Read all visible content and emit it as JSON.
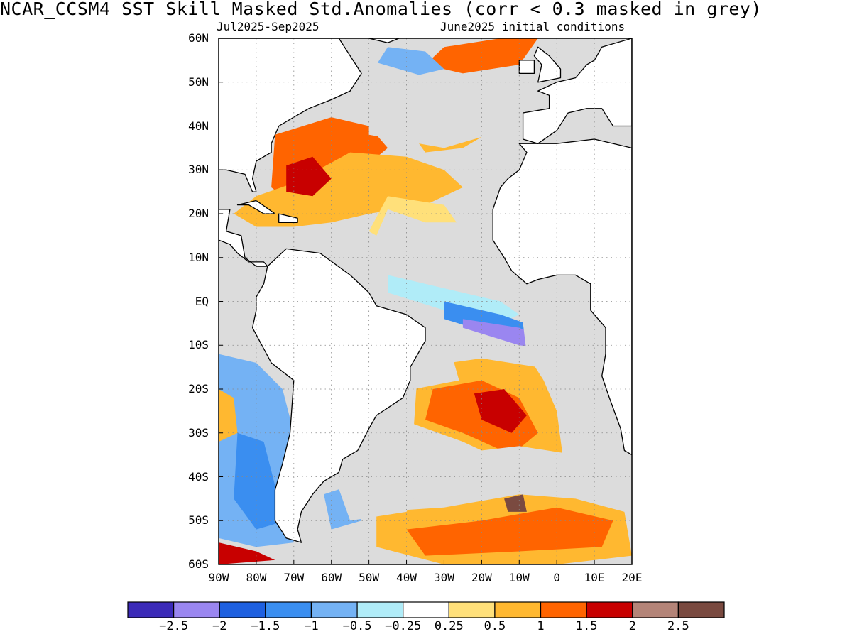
{
  "title": "NCAR_CCSM4   SST Skill Masked Std.Anomalies (corr < 0.3 masked in grey)",
  "subtitle_left": "Jul2025-Sep2025",
  "subtitle_right": "June2025 initial conditions",
  "map": {
    "projection": "equirectangular",
    "lon_range": [
      -90,
      20
    ],
    "lat_range": [
      -60,
      60
    ],
    "grid": "dotted",
    "mask_color": "#dcdcdc",
    "land_color": "#ffffff",
    "lat_ticks": [
      "60N",
      "50N",
      "40N",
      "30N",
      "20N",
      "10N",
      "EQ",
      "10S",
      "20S",
      "30S",
      "40S",
      "50S",
      "60S"
    ],
    "lat_values": [
      60,
      50,
      40,
      30,
      20,
      10,
      0,
      -10,
      -20,
      -30,
      -40,
      -50,
      -60
    ],
    "lon_ticks": [
      "90W",
      "80W",
      "70W",
      "60W",
      "50W",
      "40W",
      "30W",
      "20W",
      "10W",
      "0",
      "10E",
      "20E"
    ],
    "lon_values": [
      -90,
      -80,
      -70,
      -60,
      -50,
      -40,
      -30,
      -20,
      -10,
      0,
      10,
      20
    ]
  },
  "colorbar": {
    "colors": [
      "#3b2ab8",
      "#9a86f0",
      "#1e60e0",
      "#3a8ef0",
      "#74b2f4",
      "#b0ecf8",
      "#ffffff",
      "#ffe07a",
      "#ffb830",
      "#ff6400",
      "#c80000",
      "#b48478",
      "#7a4a40"
    ],
    "labels": [
      "-2.5",
      "-2",
      "-1.5",
      "-1",
      "-0.5",
      "-0.25",
      "0.25",
      "0.5",
      "1",
      "1.5",
      "2",
      "2.5"
    ]
  },
  "regions": [
    {
      "c": "#ff6400",
      "pts": [
        [
          -75,
          38
        ],
        [
          -60,
          42
        ],
        [
          -50,
          40
        ],
        [
          -45,
          35
        ],
        [
          -52,
          30
        ],
        [
          -60,
          24
        ],
        [
          -70,
          22
        ],
        [
          -76,
          26
        ]
      ]
    },
    {
      "c": "#ffb830",
      "pts": [
        [
          -55,
          34
        ],
        [
          -40,
          33
        ],
        [
          -30,
          30
        ],
        [
          -25,
          26
        ],
        [
          -35,
          22
        ],
        [
          -50,
          20
        ],
        [
          -60,
          18
        ],
        [
          -70,
          17
        ],
        [
          -80,
          17
        ],
        [
          -86,
          20
        ],
        [
          -80,
          24
        ],
        [
          -70,
          27
        ]
      ]
    },
    {
      "c": "#ffe07a",
      "pts": [
        [
          -45,
          24
        ],
        [
          -30,
          22
        ],
        [
          -25,
          16
        ],
        [
          -30,
          12
        ],
        [
          -42,
          12
        ],
        [
          -50,
          16
        ]
      ]
    },
    {
      "c": "#c80000",
      "pts": [
        [
          -72,
          31
        ],
        [
          -65,
          33
        ],
        [
          -60,
          28
        ],
        [
          -65,
          24
        ],
        [
          -72,
          25
        ]
      ]
    },
    {
      "c": "#ffb830",
      "pts": [
        [
          -40,
          40
        ],
        [
          -20,
          46
        ],
        [
          -10,
          47
        ],
        [
          -15,
          40
        ],
        [
          -25,
          35
        ],
        [
          -35,
          34
        ]
      ]
    },
    {
      "c": "#ff6400",
      "pts": [
        [
          -30,
          58
        ],
        [
          -15,
          60
        ],
        [
          -5,
          60
        ],
        [
          -10,
          54
        ],
        [
          -25,
          52
        ],
        [
          -35,
          54
        ]
      ]
    },
    {
      "c": "#74b2f4",
      "pts": [
        [
          -45,
          58
        ],
        [
          -35,
          57
        ],
        [
          -30,
          53
        ],
        [
          -40,
          51
        ],
        [
          -48,
          54
        ]
      ]
    },
    {
      "c": "#b0ecf8",
      "pts": [
        [
          -45,
          6
        ],
        [
          -30,
          3
        ],
        [
          -15,
          0
        ],
        [
          -10,
          -3
        ],
        [
          -15,
          -5
        ],
        [
          -30,
          -2
        ],
        [
          -45,
          2
        ]
      ]
    },
    {
      "c": "#3a8ef0",
      "pts": [
        [
          -30,
          0
        ],
        [
          -15,
          -3
        ],
        [
          -5,
          -6
        ],
        [
          -3,
          -9
        ],
        [
          -15,
          -8
        ],
        [
          -30,
          -4
        ]
      ]
    },
    {
      "c": "#9a86f0",
      "pts": [
        [
          -25,
          -4
        ],
        [
          -10,
          -6
        ],
        [
          -2,
          -9
        ],
        [
          -1,
          -11
        ],
        [
          -10,
          -10
        ],
        [
          -25,
          -6
        ]
      ]
    },
    {
      "c": "#ffb830",
      "pts": [
        [
          -37,
          -15
        ],
        [
          -20,
          -13
        ],
        [
          -5,
          -15
        ],
        [
          0,
          -25
        ],
        [
          2,
          -38
        ],
        [
          -10,
          -38
        ],
        [
          -25,
          -32
        ],
        [
          -38,
          -28
        ]
      ]
    },
    {
      "c": "#ff6400",
      "pts": [
        [
          -33,
          -20
        ],
        [
          -20,
          -18
        ],
        [
          -10,
          -22
        ],
        [
          -5,
          -30
        ],
        [
          -12,
          -35
        ],
        [
          -25,
          -30
        ],
        [
          -35,
          -27
        ]
      ]
    },
    {
      "c": "#c80000",
      "pts": [
        [
          -22,
          -21
        ],
        [
          -14,
          -20
        ],
        [
          -8,
          -26
        ],
        [
          -12,
          -30
        ],
        [
          -20,
          -27
        ]
      ]
    },
    {
      "c": "#dcdcdc",
      "pts": [
        [
          -30,
          -35
        ],
        [
          -10,
          -33
        ],
        [
          5,
          -35
        ],
        [
          10,
          -45
        ],
        [
          0,
          -50
        ],
        [
          -20,
          -48
        ],
        [
          -30,
          -42
        ]
      ]
    },
    {
      "c": "#ffb830",
      "pts": [
        [
          -48,
          -48
        ],
        [
          -30,
          -47
        ],
        [
          -10,
          -44
        ],
        [
          5,
          -45
        ],
        [
          18,
          -48
        ],
        [
          20,
          -58
        ],
        [
          0,
          -60
        ],
        [
          -30,
          -60
        ],
        [
          -48,
          -56
        ]
      ]
    },
    {
      "c": "#ff6400",
      "pts": [
        [
          -40,
          -52
        ],
        [
          -20,
          -50
        ],
        [
          0,
          -47
        ],
        [
          15,
          -50
        ],
        [
          12,
          -56
        ],
        [
          -10,
          -57
        ],
        [
          -35,
          -58
        ]
      ]
    },
    {
      "c": "#7a4a40",
      "pts": [
        [
          -14,
          -45
        ],
        [
          -9,
          -44
        ],
        [
          -8,
          -48
        ],
        [
          -13,
          -48
        ]
      ]
    },
    {
      "c": "#74b2f4",
      "pts": [
        [
          -90,
          -12
        ],
        [
          -80,
          -14
        ],
        [
          -73,
          -20
        ],
        [
          -70,
          -30
        ],
        [
          -72,
          -45
        ],
        [
          -70,
          -55
        ],
        [
          -80,
          -56
        ],
        [
          -90,
          -54
        ]
      ]
    },
    {
      "c": "#3a8ef0",
      "pts": [
        [
          -85,
          -30
        ],
        [
          -78,
          -32
        ],
        [
          -75,
          -42
        ],
        [
          -72,
          -50
        ],
        [
          -80,
          -52
        ],
        [
          -86,
          -45
        ]
      ]
    },
    {
      "c": "#ffb830",
      "pts": [
        [
          -90,
          -20
        ],
        [
          -86,
          -22
        ],
        [
          -85,
          -30
        ],
        [
          -90,
          -32
        ]
      ]
    },
    {
      "c": "#c80000",
      "pts": [
        [
          -90,
          -55
        ],
        [
          -80,
          -57
        ],
        [
          -75,
          -59
        ],
        [
          -90,
          -60
        ]
      ]
    },
    {
      "c": "#74b2f4",
      "pts": [
        [
          -62,
          -44
        ],
        [
          -55,
          -42
        ],
        [
          -52,
          -50
        ],
        [
          -60,
          -52
        ]
      ]
    },
    {
      "c": "#dcdcdc",
      "pts": [
        [
          -50,
          55
        ],
        [
          -30,
          50
        ],
        [
          -20,
          48
        ],
        [
          -5,
          52
        ],
        [
          0,
          44
        ],
        [
          -10,
          40
        ],
        [
          -30,
          35
        ],
        [
          -50,
          38
        ]
      ]
    },
    {
      "c": "#dcdcdc",
      "pts": [
        [
          -45,
          21
        ],
        [
          -35,
          18
        ],
        [
          -25,
          18
        ],
        [
          -20,
          12
        ],
        [
          -30,
          8
        ],
        [
          -40,
          10
        ],
        [
          -48,
          15
        ]
      ]
    },
    {
      "c": "#dcdcdc",
      "pts": [
        [
          -25,
          8
        ],
        [
          -15,
          10
        ],
        [
          -12,
          4
        ],
        [
          -20,
          2
        ]
      ]
    },
    {
      "c": "#dcdcdc",
      "pts": [
        [
          -10,
          2
        ],
        [
          5,
          2
        ],
        [
          10,
          -6
        ],
        [
          8,
          -18
        ],
        [
          5,
          -28
        ],
        [
          -2,
          -20
        ],
        [
          -8,
          -12
        ]
      ]
    },
    {
      "c": "#dcdcdc",
      "pts": [
        [
          -40,
          -12
        ],
        [
          -28,
          -12
        ],
        [
          -26,
          -18
        ],
        [
          -38,
          -20
        ]
      ]
    },
    {
      "c": "#dcdcdc",
      "pts": [
        [
          -60,
          -38
        ],
        [
          -45,
          -35
        ],
        [
          -35,
          -40
        ],
        [
          -40,
          -48
        ],
        [
          -55,
          -50
        ]
      ]
    }
  ],
  "land": [
    {
      "name": "north-america",
      "pts": [
        [
          -90,
          60
        ],
        [
          -58,
          60
        ],
        [
          -52,
          52
        ],
        [
          -55,
          48
        ],
        [
          -60,
          46
        ],
        [
          -66,
          44
        ],
        [
          -70,
          42
        ],
        [
          -74,
          40
        ],
        [
          -76,
          36
        ],
        [
          -76,
          34
        ],
        [
          -80,
          32
        ],
        [
          -81,
          28
        ],
        [
          -80,
          25
        ],
        [
          -81,
          25
        ],
        [
          -83,
          29
        ],
        [
          -88,
          30
        ],
        [
          -90,
          30
        ]
      ]
    },
    {
      "name": "central-america",
      "pts": [
        [
          -90,
          21
        ],
        [
          -87,
          21
        ],
        [
          -88,
          16
        ],
        [
          -84,
          15
        ],
        [
          -83,
          10
        ],
        [
          -80,
          8
        ],
        [
          -77,
          8
        ],
        [
          -78,
          9
        ],
        [
          -82,
          9
        ],
        [
          -85,
          11
        ],
        [
          -87,
          13
        ],
        [
          -90,
          14
        ]
      ]
    },
    {
      "name": "south-america",
      "pts": [
        [
          -77,
          8
        ],
        [
          -72,
          12
        ],
        [
          -63,
          11
        ],
        [
          -55,
          6
        ],
        [
          -50,
          2
        ],
        [
          -48,
          -1
        ],
        [
          -40,
          -3
        ],
        [
          -35,
          -6
        ],
        [
          -35,
          -9
        ],
        [
          -39,
          -15
        ],
        [
          -39,
          -18
        ],
        [
          -41,
          -22
        ],
        [
          -48,
          -26
        ],
        [
          -50,
          -29
        ],
        [
          -53,
          -34
        ],
        [
          -57,
          -36
        ],
        [
          -58,
          -39
        ],
        [
          -62,
          -41
        ],
        [
          -65,
          -44
        ],
        [
          -68,
          -48
        ],
        [
          -69,
          -52
        ],
        [
          -68,
          -55
        ],
        [
          -72,
          -54
        ],
        [
          -75,
          -50
        ],
        [
          -75,
          -43
        ],
        [
          -73,
          -37
        ],
        [
          -71,
          -30
        ],
        [
          -70,
          -18
        ],
        [
          -76,
          -14
        ],
        [
          -81,
          -6
        ],
        [
          -80,
          -2
        ],
        [
          -80,
          1
        ],
        [
          -78,
          4
        ]
      ]
    },
    {
      "name": "africa",
      "pts": [
        [
          -10,
          36
        ],
        [
          -6,
          36
        ],
        [
          0,
          36
        ],
        [
          10,
          37
        ],
        [
          20,
          35
        ],
        [
          20,
          -35
        ],
        [
          18,
          -34
        ],
        [
          17,
          -29
        ],
        [
          14,
          -22
        ],
        [
          12,
          -17
        ],
        [
          13,
          -12
        ],
        [
          13,
          -6
        ],
        [
          9,
          -2
        ],
        [
          9,
          4
        ],
        [
          5,
          6
        ],
        [
          0,
          6
        ],
        [
          -5,
          5
        ],
        [
          -8,
          4
        ],
        [
          -12,
          7
        ],
        [
          -14,
          10
        ],
        [
          -17,
          14
        ],
        [
          -17,
          21
        ],
        [
          -15,
          26
        ],
        [
          -13,
          28
        ],
        [
          -10,
          30
        ],
        [
          -8,
          34
        ]
      ]
    },
    {
      "name": "europe",
      "pts": [
        [
          -9,
          37
        ],
        [
          -9,
          43
        ],
        [
          -2,
          44
        ],
        [
          -2,
          47
        ],
        [
          -5,
          48
        ],
        [
          0,
          50
        ],
        [
          5,
          51
        ],
        [
          8,
          54
        ],
        [
          10,
          55
        ],
        [
          12,
          58
        ],
        [
          20,
          60
        ],
        [
          20,
          40
        ],
        [
          15,
          40
        ],
        [
          12,
          44
        ],
        [
          8,
          44
        ],
        [
          3,
          43
        ],
        [
          0,
          39
        ],
        [
          -5,
          36
        ]
      ]
    },
    {
      "name": "great-britain",
      "pts": [
        [
          -5,
          50
        ],
        [
          1,
          51
        ],
        [
          1,
          53
        ],
        [
          -2,
          56
        ],
        [
          -5,
          58
        ],
        [
          -6,
          56
        ],
        [
          -4,
          54
        ]
      ]
    },
    {
      "name": "ireland",
      "pts": [
        [
          -10,
          52
        ],
        [
          -6,
          52
        ],
        [
          -6,
          55
        ],
        [
          -10,
          55
        ]
      ]
    },
    {
      "name": "cuba",
      "pts": [
        [
          -85,
          22
        ],
        [
          -80,
          23
        ],
        [
          -75,
          20
        ],
        [
          -78,
          20
        ],
        [
          -82,
          22
        ]
      ]
    },
    {
      "name": "hispaniola",
      "pts": [
        [
          -74,
          20
        ],
        [
          -69,
          19
        ],
        [
          -69,
          18
        ],
        [
          -74,
          18
        ]
      ]
    },
    {
      "name": "greenland",
      "pts": [
        [
          -50,
          60
        ],
        [
          -42,
          60
        ],
        [
          -45,
          59
        ]
      ]
    }
  ]
}
